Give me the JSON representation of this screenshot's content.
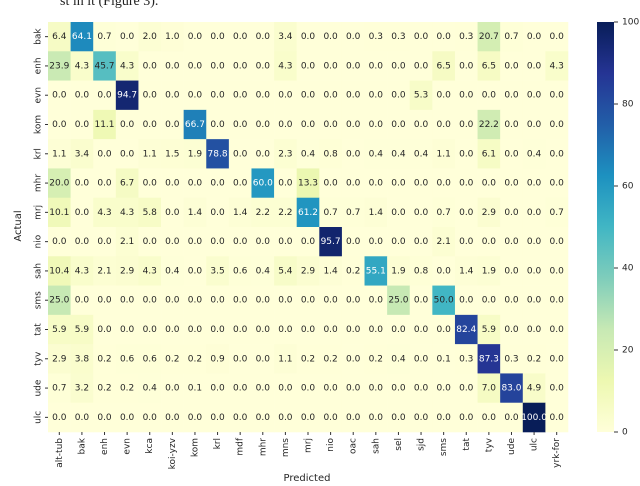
{
  "top_text": "st in it (Figure 3).",
  "chart_data": {
    "type": "heatmap",
    "x_label": "Predicted",
    "y_label": "Actual",
    "x_categories": [
      "alt-tub",
      "bak",
      "enh",
      "evn",
      "kca",
      "koi-yzv",
      "kom",
      "krl",
      "mdf",
      "mhr",
      "mns",
      "mrj",
      "nio",
      "oac",
      "sah",
      "sel",
      "sjd",
      "sms",
      "tat",
      "tyv",
      "ude",
      "ulc",
      "yrk-for"
    ],
    "y_categories": [
      "bak",
      "enh",
      "evn",
      "kom",
      "krl",
      "mhr",
      "mrj",
      "nio",
      "sah",
      "sms",
      "tat",
      "tyv",
      "ude",
      "ulc"
    ],
    "values": [
      [
        6.4,
        64.1,
        0.7,
        0,
        2.0,
        1.0,
        0,
        0,
        0,
        0,
        3.4,
        0,
        0,
        0,
        0.3,
        0.3,
        0,
        0,
        0.3,
        20.7,
        0.7,
        0,
        0
      ],
      [
        23.9,
        4.3,
        45.7,
        4.3,
        0,
        0,
        0,
        0,
        0,
        0,
        4.3,
        0,
        0,
        0,
        0,
        0,
        0,
        6.5,
        0,
        6.5,
        0,
        0,
        4.3
      ],
      [
        0,
        0,
        0,
        94.7,
        0,
        0,
        0,
        0,
        0,
        0,
        0,
        0,
        0,
        0,
        0,
        0,
        5.3,
        0,
        0,
        0,
        0,
        0,
        0
      ],
      [
        0,
        0,
        11.1,
        0,
        0,
        0,
        66.7,
        0,
        0,
        0,
        0,
        0,
        0,
        0,
        0,
        0,
        0,
        0,
        0,
        22.2,
        0,
        0,
        0
      ],
      [
        1.1,
        3.4,
        0,
        0,
        1.1,
        1.5,
        1.9,
        78.8,
        0,
        0,
        2.3,
        0.4,
        0.8,
        0,
        0.4,
        0.4,
        0.4,
        1.1,
        0,
        6.1,
        0,
        0.4,
        0
      ],
      [
        20.0,
        0,
        0,
        6.7,
        0,
        0,
        0,
        0,
        0,
        60.0,
        0,
        13.3,
        0,
        0,
        0,
        0,
        0,
        0,
        0,
        0,
        0,
        0,
        0
      ],
      [
        10.1,
        0,
        4.3,
        4.3,
        5.8,
        0,
        1.4,
        0,
        1.4,
        2.2,
        2.2,
        61.2,
        0.7,
        0.7,
        1.4,
        0,
        0,
        0.7,
        0,
        2.9,
        0,
        0,
        0.7
      ],
      [
        0,
        0,
        0,
        2.1,
        0,
        0,
        0,
        0,
        0,
        0,
        0,
        0,
        95.7,
        0,
        0,
        0,
        0,
        2.1,
        0,
        0,
        0,
        0,
        0
      ],
      [
        10.4,
        4.3,
        2.1,
        2.9,
        4.3,
        0.4,
        0,
        3.5,
        0.6,
        0.4,
        5.4,
        2.9,
        1.4,
        0.2,
        55.1,
        1.9,
        0.8,
        0,
        1.4,
        1.9,
        0,
        0,
        0
      ],
      [
        25.0,
        0,
        0,
        0,
        0,
        0,
        0,
        0,
        0,
        0,
        0,
        0,
        0,
        0,
        0,
        25.0,
        0,
        50.0,
        0,
        0,
        0,
        0,
        0
      ],
      [
        5.9,
        5.9,
        0,
        0,
        0,
        0,
        0,
        0,
        0,
        0,
        0,
        0,
        0,
        0,
        0,
        0,
        0,
        0,
        82.4,
        5.9,
        0,
        0,
        0
      ],
      [
        2.9,
        3.8,
        0.2,
        0.6,
        0.6,
        0.2,
        0.2,
        0.9,
        0,
        0,
        1.1,
        0.2,
        0.2,
        0,
        0.2,
        0.4,
        0,
        0.1,
        0.3,
        87.3,
        0.3,
        0.2,
        0
      ],
      [
        0.7,
        3.2,
        0.2,
        0.2,
        0.4,
        0,
        0.1,
        0,
        0,
        0,
        0,
        0,
        0,
        0,
        0,
        0,
        0,
        0,
        0,
        7.0,
        83.0,
        4.9,
        0
      ],
      [
        0,
        0,
        0,
        0,
        0,
        0,
        0,
        0,
        0,
        0,
        0,
        0,
        0,
        0,
        0,
        0,
        0,
        0,
        0,
        0,
        0,
        100.0,
        0
      ]
    ],
    "value_labels": [
      [
        "6.4",
        "64.1",
        "0.7",
        "0.0",
        "2.0",
        "1.0",
        "0.0",
        "0.0",
        "0.0",
        "0.0",
        "3.4",
        "0.0",
        "0.0",
        "0.0",
        "0.3",
        "0.3",
        "0.0",
        "0.0",
        "0.3",
        "20.7",
        "0.7",
        "0.0",
        "0.0"
      ],
      [
        "23.9",
        "4.3",
        "45.7",
        "4.3",
        "0.0",
        "0.0",
        "0.0",
        "0.0",
        "0.0",
        "0.0",
        "4.3",
        "0.0",
        "0.0",
        "0.0",
        "0.0",
        "0.0",
        "0.0",
        "6.5",
        "0.0",
        "6.5",
        "0.0",
        "0.0",
        "4.3"
      ],
      [
        "0.0",
        "0.0",
        "0.0",
        "94.7",
        "0.0",
        "0.0",
        "0.0",
        "0.0",
        "0.0",
        "0.0",
        "0.0",
        "0.0",
        "0.0",
        "0.0",
        "0.0",
        "0.0",
        "5.3",
        "0.0",
        "0.0",
        "0.0",
        "0.0",
        "0.0",
        "0.0"
      ],
      [
        "0.0",
        "0.0",
        "11.1",
        "0.0",
        "0.0",
        "0.0",
        "66.7",
        "0.0",
        "0.0",
        "0.0",
        "0.0",
        "0.0",
        "0.0",
        "0.0",
        "0.0",
        "0.0",
        "0.0",
        "0.0",
        "0.0",
        "22.2",
        "0.0",
        "0.0",
        "0.0"
      ],
      [
        "1.1",
        "3.4",
        "0.0",
        "0.0",
        "1.1",
        "1.5",
        "1.9",
        "78.8",
        "0.0",
        "0.0",
        "2.3",
        "0.4",
        "0.8",
        "0.0",
        "0.4",
        "0.4",
        "0.4",
        "1.1",
        "0.0",
        "6.1",
        "0.0",
        "0.4",
        "0.0"
      ],
      [
        "20.0",
        "0.0",
        "0.0",
        "6.7",
        "0.0",
        "0.0",
        "0.0",
        "0.0",
        "0.0",
        "60.0",
        "0.0",
        "13.3",
        "0.0",
        "0.0",
        "0.0",
        "0.0",
        "0.0",
        "0.0",
        "0.0",
        "0.0",
        "0.0",
        "0.0",
        "0.0"
      ],
      [
        "10.1",
        "0.0",
        "4.3",
        "4.3",
        "5.8",
        "0.0",
        "1.4",
        "0.0",
        "1.4",
        "2.2",
        "2.2",
        "61.2",
        "0.7",
        "0.7",
        "1.4",
        "0.0",
        "0.0",
        "0.7",
        "0.0",
        "2.9",
        "0.0",
        "0.0",
        "0.7"
      ],
      [
        "0.0",
        "0.0",
        "0.0",
        "2.1",
        "0.0",
        "0.0",
        "0.0",
        "0.0",
        "0.0",
        "0.0",
        "0.0",
        "0.0",
        "95.7",
        "0.0",
        "0.0",
        "0.0",
        "0.0",
        "2.1",
        "0.0",
        "0.0",
        "0.0",
        "0.0",
        "0.0"
      ],
      [
        "10.4",
        "4.3",
        "2.1",
        "2.9",
        "4.3",
        "0.4",
        "0.0",
        "3.5",
        "0.6",
        "0.4",
        "5.4",
        "2.9",
        "1.4",
        "0.2",
        "55.1",
        "1.9",
        "0.8",
        "0.0",
        "1.4",
        "1.9",
        "0.0",
        "0.0",
        "0.0"
      ],
      [
        "25.0",
        "0.0",
        "0.0",
        "0.0",
        "0.0",
        "0.0",
        "0.0",
        "0.0",
        "0.0",
        "0.0",
        "0.0",
        "0.0",
        "0.0",
        "0.0",
        "0.0",
        "25.0",
        "0.0",
        "50.0",
        "0.0",
        "0.0",
        "0.0",
        "0.0",
        "0.0"
      ],
      [
        "5.9",
        "5.9",
        "0.0",
        "0.0",
        "0.0",
        "0.0",
        "0.0",
        "0.0",
        "0.0",
        "0.0",
        "0.0",
        "0.0",
        "0.0",
        "0.0",
        "0.0",
        "0.0",
        "0.0",
        "0.0",
        "82.4",
        "5.9",
        "0.0",
        "0.0",
        "0.0"
      ],
      [
        "2.9",
        "3.8",
        "0.2",
        "0.6",
        "0.6",
        "0.2",
        "0.2",
        "0.9",
        "0.0",
        "0.0",
        "1.1",
        "0.2",
        "0.2",
        "0.0",
        "0.2",
        "0.4",
        "0.0",
        "0.1",
        "0.3",
        "87.3",
        "0.3",
        "0.2",
        "0.0"
      ],
      [
        "0.7",
        "3.2",
        "0.2",
        "0.2",
        "0.4",
        "0.0",
        "0.1",
        "0.0",
        "0.0",
        "0.0",
        "0.0",
        "0.0",
        "0.0",
        "0.0",
        "0.0",
        "0.0",
        "0.0",
        "0.0",
        "0.0",
        "7.0",
        "83.0",
        "4.9",
        "0.0"
      ],
      [
        "0.0",
        "0.0",
        "0.0",
        "0.0",
        "0.0",
        "0.0",
        "0.0",
        "0.0",
        "0.0",
        "0.0",
        "0.0",
        "0.0",
        "0.0",
        "0.0",
        "0.0",
        "0.0",
        "0.0",
        "0.0",
        "0.0",
        "0.0",
        "0.0",
        "100.0",
        "0.0"
      ]
    ],
    "colormap": [
      "#ffffd9",
      "#edf8b1",
      "#c7e9b4",
      "#7fcdbb",
      "#41b6c4",
      "#1d91c0",
      "#225ea8",
      "#253494",
      "#081d58"
    ],
    "zlim": [
      0,
      100
    ],
    "zticks": [
      0,
      20,
      40,
      60,
      80,
      100
    ]
  }
}
